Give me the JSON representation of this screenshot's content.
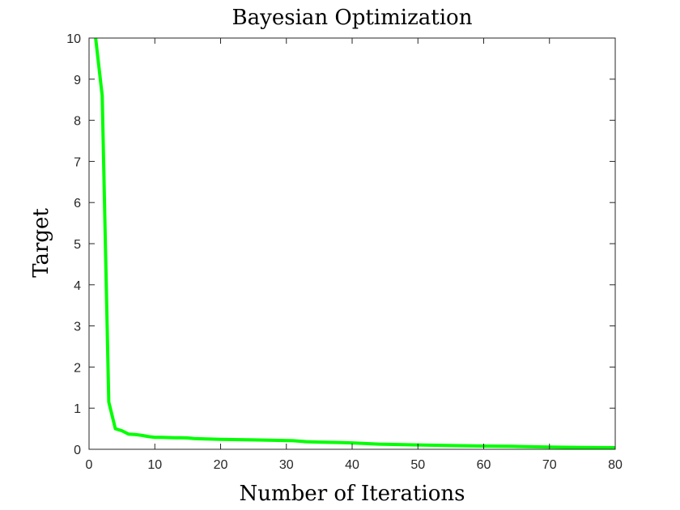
{
  "chart_data": {
    "type": "line",
    "title": "Bayesian Optimization",
    "xlabel": "Number of Iterations",
    "ylabel": "Target",
    "xlim": [
      0,
      80
    ],
    "ylim": [
      0,
      10
    ],
    "xticks": [
      "0",
      "10",
      "20",
      "30",
      "40",
      "50",
      "60",
      "70",
      "80"
    ],
    "yticks": [
      "0",
      "1",
      "2",
      "3",
      "4",
      "5",
      "6",
      "7",
      "8",
      "9",
      "10"
    ],
    "grid": false,
    "series": [
      {
        "color": "#00ff00",
        "x": [
          1,
          2,
          3,
          4,
          5,
          6,
          7,
          8,
          9,
          10,
          11,
          12,
          13,
          14,
          15,
          16,
          18,
          20,
          22,
          25,
          28,
          31,
          33,
          35,
          38,
          40,
          42,
          44,
          47,
          50,
          55,
          60,
          65,
          70,
          75,
          80
        ],
        "y": [
          10.0,
          8.6,
          1.15,
          0.5,
          0.45,
          0.37,
          0.36,
          0.34,
          0.31,
          0.29,
          0.29,
          0.285,
          0.28,
          0.28,
          0.275,
          0.26,
          0.25,
          0.24,
          0.235,
          0.23,
          0.22,
          0.21,
          0.185,
          0.175,
          0.165,
          0.155,
          0.14,
          0.125,
          0.115,
          0.105,
          0.09,
          0.08,
          0.07,
          0.055,
          0.045,
          0.04
        ]
      }
    ]
  }
}
